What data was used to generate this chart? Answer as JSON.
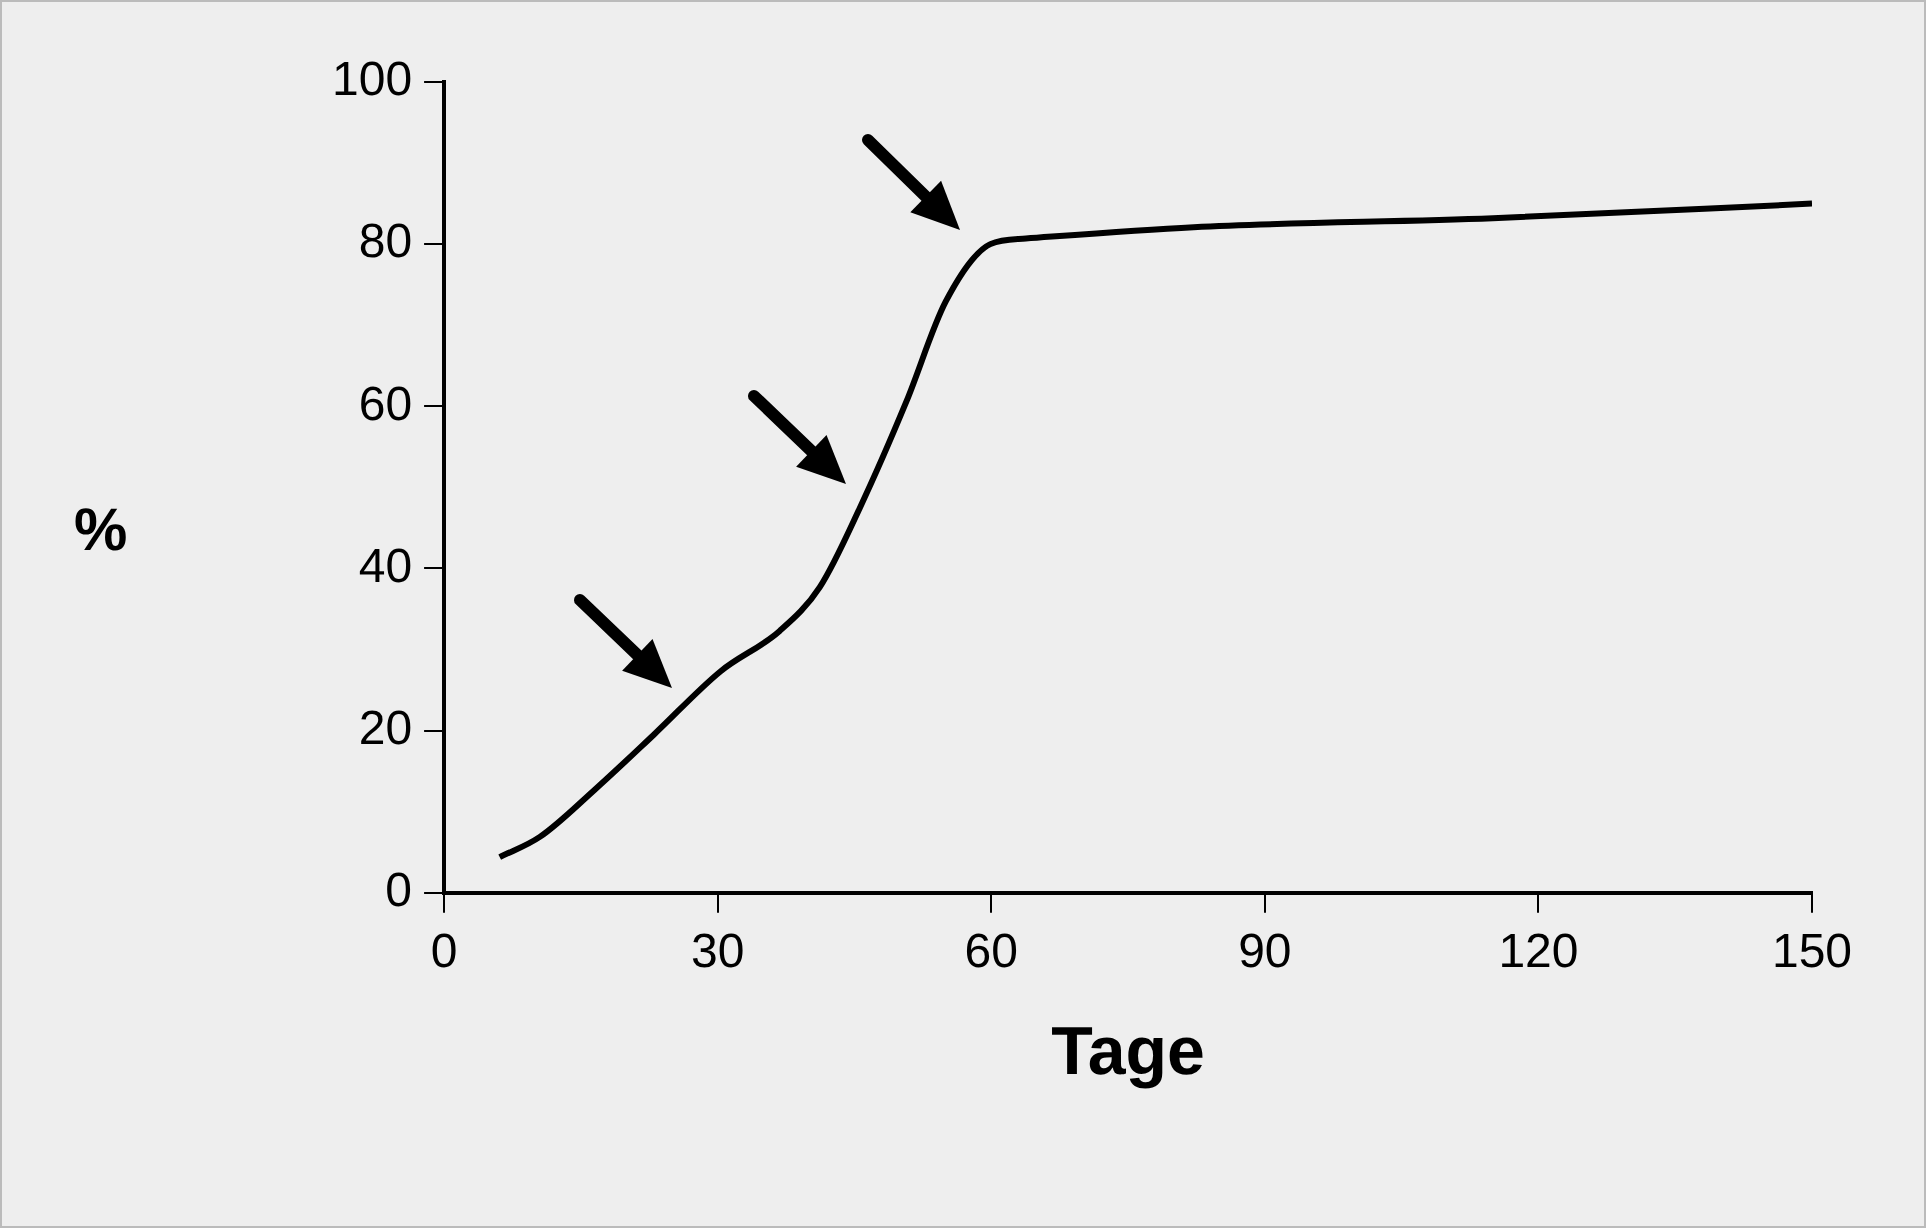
{
  "chart_data": {
    "type": "line",
    "xlabel": "Tage",
    "ylabel": "%",
    "series": [
      {
        "color": "#000000",
        "x": [
          6.1,
          10.5,
          16.4,
          23,
          30.3,
          36.8,
          41.2,
          45.6,
          50.7,
          55,
          59.9,
          63.8,
          82.2,
          115,
          150
        ],
        "values": [
          4.4,
          6.9,
          12.6,
          19.5,
          27.3,
          32.3,
          37.7,
          47.5,
          60.6,
          72.9,
          80,
          80.7,
          82.1,
          83.2,
          85
        ]
      }
    ],
    "xlim": [
      0,
      150
    ],
    "xticks": [
      0,
      30,
      60,
      90,
      120,
      150
    ],
    "ylim": [
      0,
      100
    ],
    "yticks": [
      0,
      20,
      40,
      60,
      80,
      100
    ],
    "grid": false,
    "legend": false,
    "marker": "none",
    "line_style": "solid"
  }
}
